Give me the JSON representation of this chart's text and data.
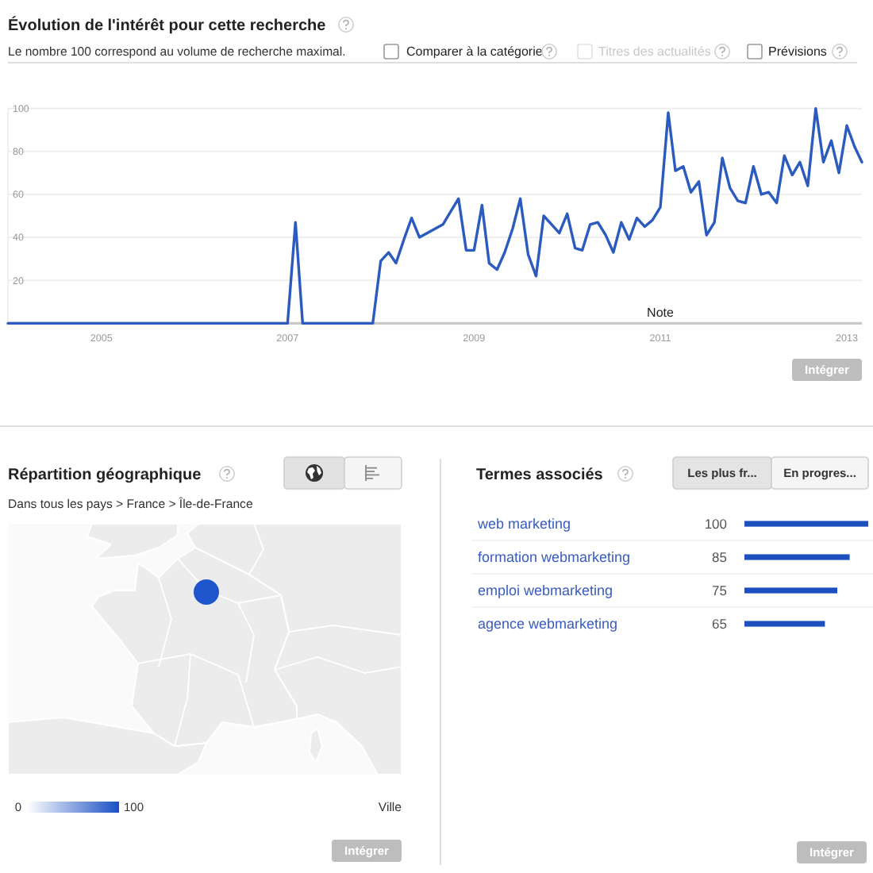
{
  "chart_data": [
    {
      "type": "line",
      "title": "Évolution de l'intérêt pour cette recherche",
      "subtitle": "Le nombre 100 correspond au volume de recherche maximal.",
      "x": [
        "2004-01",
        "2007-01",
        "2007-02",
        "2007-03",
        "2007-12",
        "2008-01",
        "2008-02",
        "2008-03",
        "2008-04",
        "2008-05",
        "2008-06",
        "2008-07",
        "2008-08",
        "2008-09",
        "2008-10",
        "2008-11",
        "2008-12",
        "2009-01",
        "2009-02",
        "2009-03",
        "2009-04",
        "2009-05",
        "2009-06",
        "2009-07",
        "2009-08",
        "2009-09",
        "2009-10",
        "2009-11",
        "2009-12",
        "2010-01",
        "2010-02",
        "2010-03",
        "2010-04",
        "2010-05",
        "2010-06",
        "2010-07",
        "2010-08",
        "2010-09",
        "2010-10",
        "2010-11",
        "2010-12",
        "2011-01",
        "2011-02",
        "2011-03",
        "2011-04",
        "2011-05",
        "2011-06",
        "2011-07",
        "2011-08",
        "2011-09",
        "2011-10",
        "2011-11",
        "2011-12",
        "2012-01",
        "2012-02",
        "2012-03",
        "2012-04",
        "2012-05",
        "2012-06",
        "2012-07",
        "2012-08",
        "2012-09",
        "2012-10",
        "2012-11",
        "2012-12",
        "2013-01",
        "2013-02",
        "2013-03"
      ],
      "values": [
        0,
        0,
        47,
        0,
        0,
        29,
        33,
        28,
        39,
        49,
        40,
        42,
        44,
        46,
        52,
        58,
        34,
        34,
        55,
        28,
        25,
        33,
        44,
        58,
        32,
        22,
        50,
        46,
        42,
        51,
        35,
        34,
        46,
        47,
        41,
        33,
        47,
        39,
        49,
        45,
        48,
        54,
        98,
        71,
        73,
        61,
        66,
        41,
        47,
        77,
        63,
        57,
        56,
        73,
        60,
        61,
        56,
        78,
        69,
        75,
        64,
        100,
        75,
        85,
        70,
        92,
        82,
        75
      ],
      "color": "#2b5bbf",
      "xlim": [
        "2004-01",
        "2013-03"
      ],
      "xticks": [
        "2005",
        "2007",
        "2009",
        "2011",
        "2013"
      ],
      "ylim": [
        0,
        100
      ],
      "yticks": [
        20,
        40,
        60,
        80,
        100
      ],
      "grid": "y",
      "annotations": [
        "Note",
        "Comparer à la catégorie",
        "Titres des actualités",
        "Prévisions",
        "Intégrer"
      ]
    },
    {
      "type": "other",
      "title": "Répartition géographique",
      "subtitle": "Dans tous les pays > France > Île-de-France",
      "annotations": [
        "0",
        "100",
        "Ville",
        "Intégrer"
      ]
    },
    {
      "type": "bar",
      "title": "Termes associés",
      "categories": [
        "web marketing",
        "formation webmarketing",
        "emploi webmarketing",
        "agence webmarketing"
      ],
      "values": [
        100,
        85,
        75,
        65
      ],
      "color": "#1d4fbf",
      "orientation": "horizontal",
      "xlim": [
        0,
        100
      ],
      "data_labels": true,
      "tick_labels": "y",
      "annotations": [
        "Les plus fr...",
        "En progres...",
        "Intégrer"
      ]
    }
  ]
}
